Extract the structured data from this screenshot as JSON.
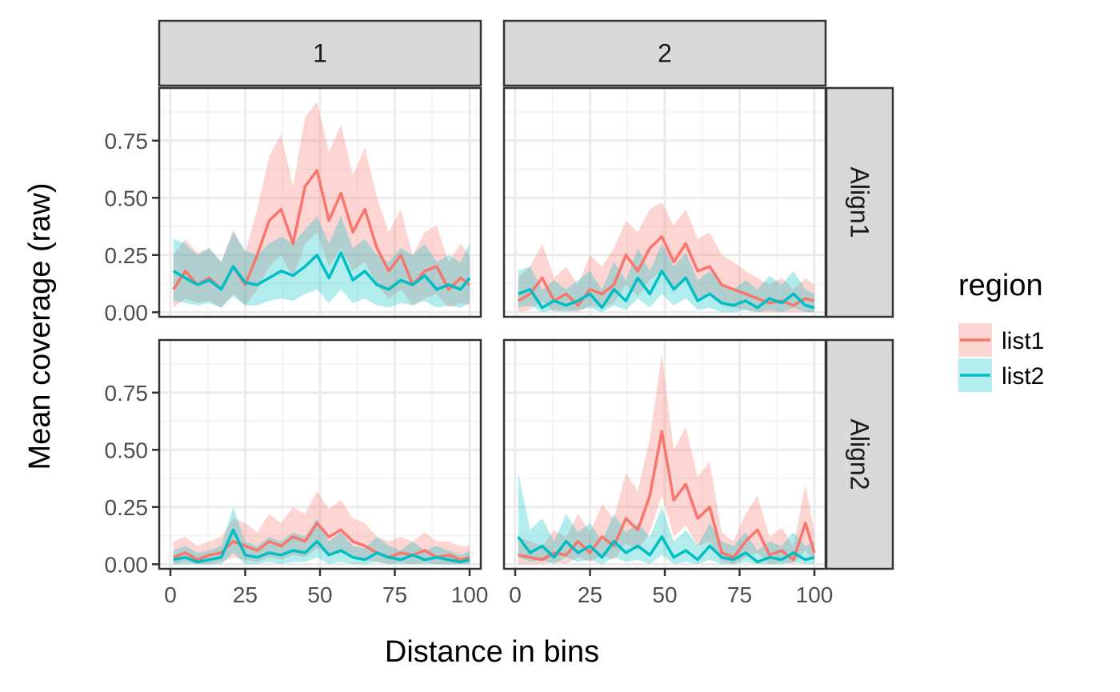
{
  "chart_data": {
    "type": "line",
    "xlabel": "Distance in bins",
    "ylabel": "Mean coverage (raw)",
    "xlim": [
      0,
      100
    ],
    "ylim": [
      -0.02,
      0.98
    ],
    "x_ticks": [
      0,
      25,
      50,
      75,
      100
    ],
    "x_tick_labels": [
      "0",
      "25",
      "50",
      "75",
      "100"
    ],
    "y_ticks": [
      0,
      0.25,
      0.5,
      0.75
    ],
    "y_tick_labels": [
      "0.00",
      "0.25",
      "0.50",
      "0.75"
    ],
    "grid": true,
    "legend": {
      "title": "region",
      "position": "right",
      "items": [
        {
          "name": "list1",
          "color": "#F8766D"
        },
        {
          "name": "list2",
          "color": "#00BFC4"
        }
      ]
    },
    "column_strips": [
      "1",
      "2"
    ],
    "row_strips": [
      "Align1",
      "Align2"
    ],
    "x": [
      1,
      5,
      9,
      13,
      17,
      21,
      25,
      29,
      33,
      37,
      41,
      45,
      49,
      53,
      57,
      61,
      65,
      69,
      73,
      77,
      81,
      85,
      89,
      93,
      97,
      100
    ],
    "panels": [
      {
        "col": "1",
        "row": "Align1",
        "series": [
          {
            "name": "list1",
            "values": [
              0.1,
              0.18,
              0.12,
              0.15,
              0.1,
              0.2,
              0.12,
              0.25,
              0.4,
              0.45,
              0.3,
              0.55,
              0.62,
              0.4,
              0.52,
              0.35,
              0.45,
              0.28,
              0.18,
              0.25,
              0.12,
              0.18,
              0.2,
              0.1,
              0.15,
              0.12
            ],
            "lower": [
              0.02,
              0.06,
              0.04,
              0.05,
              0.02,
              0.08,
              0.03,
              0.1,
              0.2,
              0.25,
              0.15,
              0.3,
              0.35,
              0.2,
              0.28,
              0.18,
              0.22,
              0.12,
              0.06,
              0.1,
              0.03,
              0.06,
              0.08,
              0.02,
              0.04,
              0.03
            ],
            "upper": [
              0.25,
              0.32,
              0.26,
              0.28,
              0.22,
              0.36,
              0.26,
              0.45,
              0.68,
              0.78,
              0.55,
              0.85,
              0.92,
              0.7,
              0.82,
              0.6,
              0.72,
              0.5,
              0.35,
              0.45,
              0.25,
              0.35,
              0.38,
              0.22,
              0.3,
              0.25
            ]
          },
          {
            "name": "list2",
            "values": [
              0.18,
              0.15,
              0.12,
              0.14,
              0.1,
              0.2,
              0.13,
              0.12,
              0.15,
              0.18,
              0.16,
              0.2,
              0.25,
              0.15,
              0.26,
              0.14,
              0.18,
              0.12,
              0.1,
              0.14,
              0.12,
              0.16,
              0.1,
              0.12,
              0.1,
              0.15
            ],
            "lower": [
              0.05,
              0.04,
              0.03,
              0.04,
              0.02,
              0.07,
              0.03,
              0.03,
              0.05,
              0.06,
              0.05,
              0.08,
              0.1,
              0.04,
              0.1,
              0.04,
              0.06,
              0.03,
              0.02,
              0.04,
              0.03,
              0.05,
              0.02,
              0.03,
              0.02,
              0.04
            ],
            "upper": [
              0.32,
              0.3,
              0.25,
              0.28,
              0.22,
              0.35,
              0.27,
              0.25,
              0.3,
              0.33,
              0.3,
              0.36,
              0.42,
              0.3,
              0.42,
              0.28,
              0.32,
              0.25,
              0.22,
              0.28,
              0.25,
              0.3,
              0.22,
              0.25,
              0.22,
              0.3
            ]
          }
        ]
      },
      {
        "col": "2",
        "row": "Align1",
        "series": [
          {
            "name": "list1",
            "values": [
              0.05,
              0.08,
              0.15,
              0.05,
              0.08,
              0.03,
              0.1,
              0.08,
              0.12,
              0.25,
              0.18,
              0.28,
              0.33,
              0.22,
              0.3,
              0.18,
              0.2,
              0.12,
              0.1,
              0.08,
              0.06,
              0.04,
              0.05,
              0.03,
              0.06,
              0.05
            ],
            "lower": [
              0.0,
              0.01,
              0.05,
              0.0,
              0.01,
              0.0,
              0.03,
              0.02,
              0.04,
              0.12,
              0.07,
              0.14,
              0.18,
              0.1,
              0.15,
              0.06,
              0.08,
              0.03,
              0.02,
              0.01,
              0.0,
              0.0,
              0.0,
              0.0,
              0.0,
              0.0
            ],
            "upper": [
              0.15,
              0.2,
              0.3,
              0.15,
              0.2,
              0.12,
              0.25,
              0.2,
              0.28,
              0.4,
              0.35,
              0.45,
              0.48,
              0.38,
              0.45,
              0.32,
              0.35,
              0.25,
              0.22,
              0.18,
              0.15,
              0.12,
              0.15,
              0.1,
              0.15,
              0.12
            ]
          },
          {
            "name": "list2",
            "values": [
              0.08,
              0.1,
              0.02,
              0.05,
              0.03,
              0.05,
              0.08,
              0.02,
              0.1,
              0.05,
              0.15,
              0.08,
              0.18,
              0.1,
              0.15,
              0.05,
              0.08,
              0.04,
              0.03,
              0.05,
              0.02,
              0.06,
              0.04,
              0.08,
              0.03,
              0.02
            ],
            "lower": [
              0.02,
              0.03,
              0.0,
              0.01,
              0.0,
              0.01,
              0.02,
              0.0,
              0.03,
              0.01,
              0.06,
              0.02,
              0.08,
              0.03,
              0.06,
              0.01,
              0.02,
              0.0,
              0.0,
              0.01,
              0.0,
              0.01,
              0.0,
              0.02,
              0.0,
              0.0
            ],
            "upper": [
              0.18,
              0.2,
              0.1,
              0.14,
              0.1,
              0.14,
              0.18,
              0.1,
              0.22,
              0.14,
              0.28,
              0.18,
              0.3,
              0.2,
              0.26,
              0.14,
              0.18,
              0.12,
              0.1,
              0.14,
              0.1,
              0.16,
              0.12,
              0.18,
              0.1,
              0.08
            ]
          }
        ]
      },
      {
        "col": "1",
        "row": "Align2",
        "series": [
          {
            "name": "list1",
            "values": [
              0.03,
              0.05,
              0.02,
              0.04,
              0.05,
              0.1,
              0.08,
              0.06,
              0.1,
              0.08,
              0.12,
              0.1,
              0.18,
              0.12,
              0.15,
              0.1,
              0.08,
              0.05,
              0.03,
              0.05,
              0.04,
              0.06,
              0.03,
              0.04,
              0.02,
              0.03
            ],
            "lower": [
              0.0,
              0.01,
              0.0,
              0.0,
              0.01,
              0.03,
              0.02,
              0.01,
              0.03,
              0.02,
              0.04,
              0.03,
              0.07,
              0.04,
              0.05,
              0.03,
              0.02,
              0.01,
              0.0,
              0.01,
              0.0,
              0.01,
              0.0,
              0.0,
              0.0,
              0.0
            ],
            "upper": [
              0.1,
              0.12,
              0.08,
              0.1,
              0.12,
              0.2,
              0.18,
              0.14,
              0.22,
              0.18,
              0.25,
              0.22,
              0.32,
              0.24,
              0.28,
              0.2,
              0.18,
              0.12,
              0.1,
              0.12,
              0.1,
              0.14,
              0.1,
              0.1,
              0.08,
              0.08
            ]
          },
          {
            "name": "list2",
            "values": [
              0.02,
              0.03,
              0.01,
              0.02,
              0.03,
              0.15,
              0.04,
              0.03,
              0.05,
              0.04,
              0.06,
              0.05,
              0.1,
              0.04,
              0.06,
              0.03,
              0.02,
              0.05,
              0.03,
              0.02,
              0.04,
              0.02,
              0.03,
              0.02,
              0.01,
              0.02
            ],
            "lower": [
              0.0,
              0.0,
              0.0,
              0.0,
              0.0,
              0.05,
              0.0,
              0.0,
              0.01,
              0.0,
              0.01,
              0.01,
              0.03,
              0.0,
              0.01,
              0.0,
              0.0,
              0.01,
              0.0,
              0.0,
              0.0,
              0.0,
              0.0,
              0.0,
              0.0,
              0.0
            ],
            "upper": [
              0.06,
              0.08,
              0.05,
              0.06,
              0.08,
              0.25,
              0.1,
              0.08,
              0.12,
              0.1,
              0.14,
              0.12,
              0.2,
              0.1,
              0.14,
              0.08,
              0.07,
              0.12,
              0.08,
              0.06,
              0.1,
              0.06,
              0.08,
              0.06,
              0.04,
              0.06
            ]
          }
        ]
      },
      {
        "col": "2",
        "row": "Align2",
        "series": [
          {
            "name": "list1",
            "values": [
              0.04,
              0.03,
              0.02,
              0.05,
              0.04,
              0.1,
              0.05,
              0.12,
              0.08,
              0.2,
              0.15,
              0.3,
              0.58,
              0.28,
              0.35,
              0.2,
              0.25,
              0.05,
              0.03,
              0.1,
              0.15,
              0.04,
              0.06,
              0.02,
              0.18,
              0.05
            ],
            "lower": [
              0.0,
              0.0,
              0.0,
              0.01,
              0.0,
              0.03,
              0.01,
              0.04,
              0.02,
              0.09,
              0.06,
              0.14,
              0.3,
              0.12,
              0.17,
              0.08,
              0.1,
              0.01,
              0.0,
              0.03,
              0.05,
              0.0,
              0.01,
              0.0,
              0.06,
              0.01
            ],
            "upper": [
              0.12,
              0.1,
              0.08,
              0.15,
              0.12,
              0.22,
              0.14,
              0.26,
              0.2,
              0.4,
              0.32,
              0.55,
              0.92,
              0.5,
              0.6,
              0.38,
              0.45,
              0.14,
              0.1,
              0.22,
              0.3,
              0.12,
              0.16,
              0.08,
              0.35,
              0.14
            ]
          },
          {
            "name": "list2",
            "values": [
              0.12,
              0.05,
              0.08,
              0.03,
              0.1,
              0.05,
              0.08,
              0.03,
              0.1,
              0.05,
              0.08,
              0.04,
              0.12,
              0.03,
              0.06,
              0.02,
              0.08,
              0.03,
              0.02,
              0.05,
              0.01,
              0.03,
              0.02,
              0.05,
              0.02,
              0.03
            ],
            "lower": [
              0.03,
              0.01,
              0.02,
              0.0,
              0.03,
              0.01,
              0.02,
              0.0,
              0.03,
              0.01,
              0.02,
              0.0,
              0.04,
              0.0,
              0.01,
              0.0,
              0.02,
              0.0,
              0.0,
              0.01,
              0.0,
              0.0,
              0.0,
              0.01,
              0.0,
              0.0
            ],
            "upper": [
              0.4,
              0.15,
              0.2,
              0.1,
              0.22,
              0.14,
              0.18,
              0.1,
              0.22,
              0.14,
              0.18,
              0.12,
              0.25,
              0.1,
              0.15,
              0.08,
              0.18,
              0.1,
              0.08,
              0.14,
              0.06,
              0.1,
              0.08,
              0.14,
              0.08,
              0.1
            ]
          }
        ]
      }
    ]
  }
}
